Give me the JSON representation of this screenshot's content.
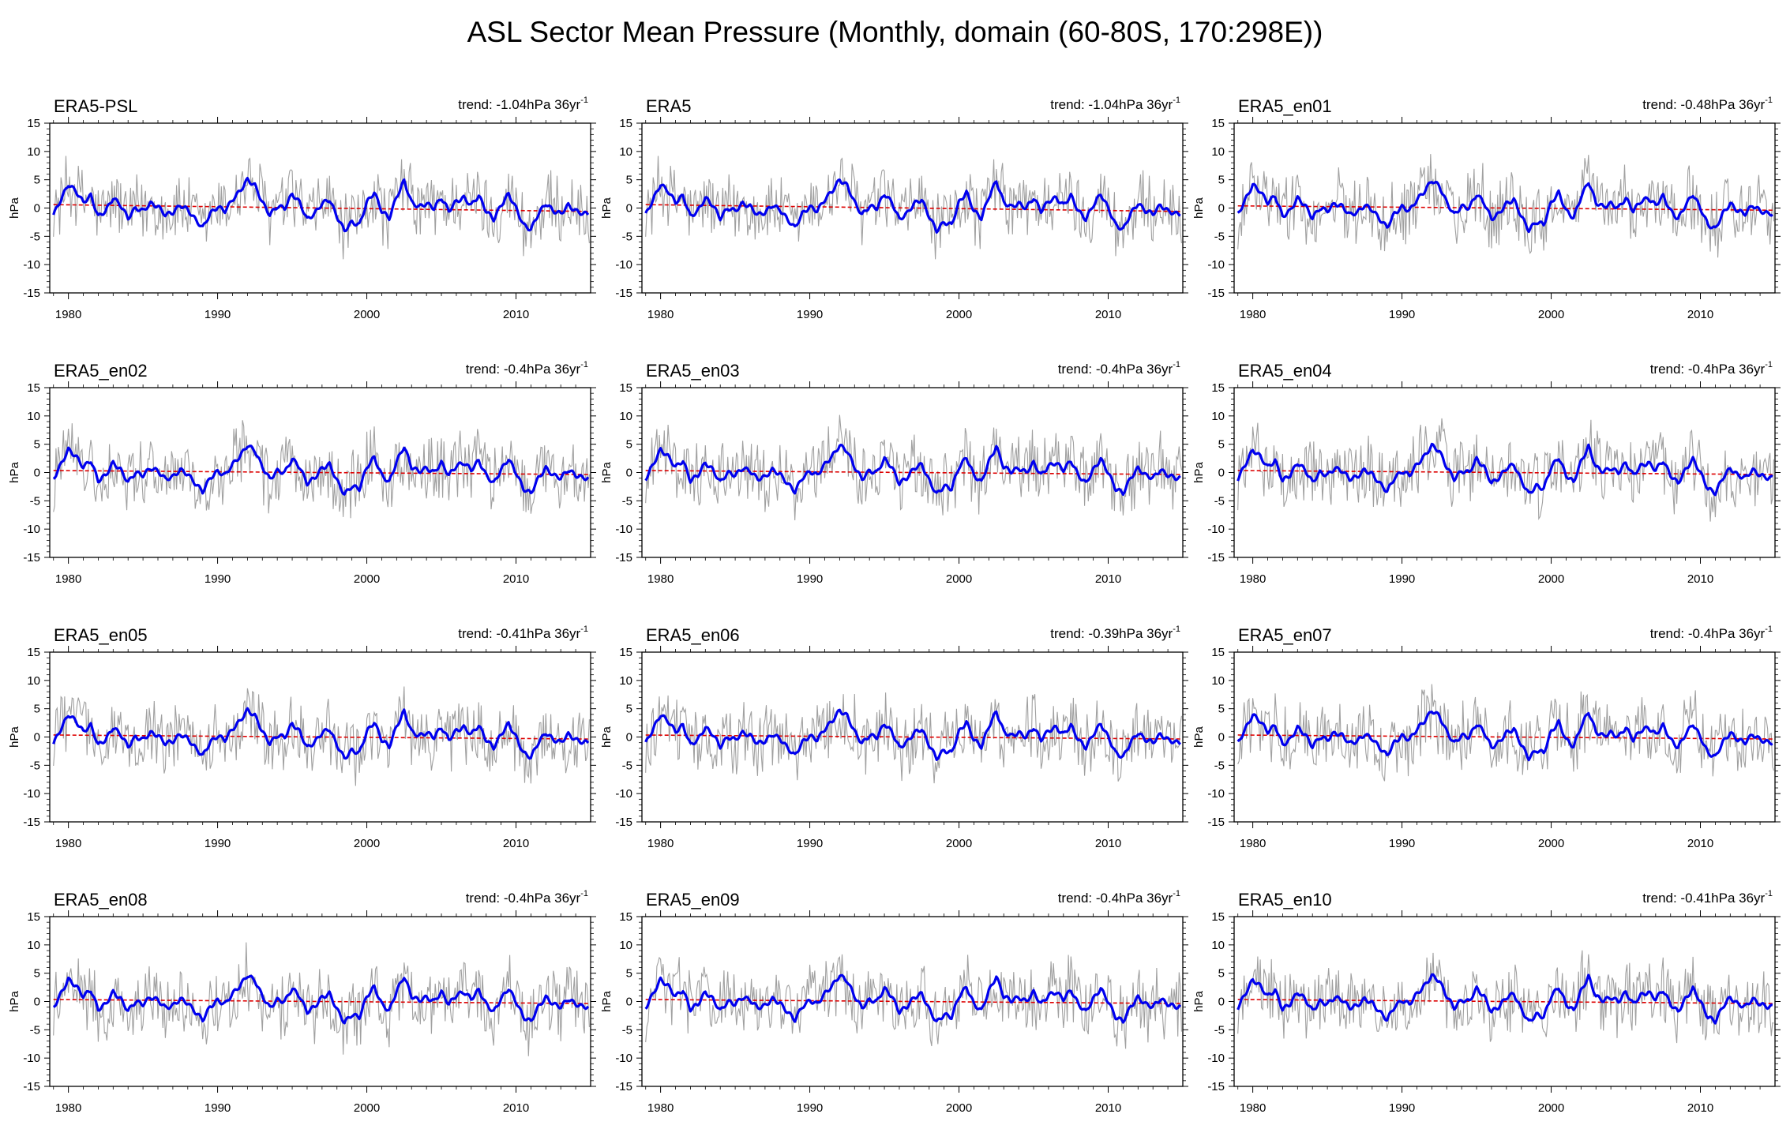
{
  "title": "ASL Sector Mean Pressure (Monthly, domain (60-80S, 170:298E))",
  "colors": {
    "monthly_line": "#a0a0a0",
    "smoothed_line": "#0000ee",
    "trend_line": "#dd0000",
    "axis": "#000000"
  },
  "axes": {
    "ylabel": "hPa",
    "ylim": [
      -15,
      15
    ],
    "yticks": [
      "15",
      "10",
      "5",
      "0",
      "-5",
      "-10",
      "-15"
    ],
    "xlim": [
      1978.75,
      2015.0
    ],
    "xticks": [
      "1980",
      "1990",
      "2000",
      "2010"
    ]
  },
  "chart_data": [
    {
      "type": "line",
      "name": "ERA5-PSL",
      "trend": "trend: -1.04hPa 36yr",
      "trend_value": -1.04,
      "offset": 0.0
    },
    {
      "type": "line",
      "name": "ERA5",
      "trend": "trend: -1.04hPa 36yr",
      "trend_value": -1.04,
      "offset": 0.0
    },
    {
      "type": "line",
      "name": "ERA5_en01",
      "trend": "trend: -0.48hPa 36yr",
      "trend_value": -0.48,
      "offset": 0.2
    },
    {
      "type": "line",
      "name": "ERA5_en02",
      "trend": "trend: -0.4hPa 36yr",
      "trend_value": -0.4,
      "offset": 0.3
    },
    {
      "type": "line",
      "name": "ERA5_en03",
      "trend": "trend: -0.4hPa 36yr",
      "trend_value": -0.4,
      "offset": 0.35
    },
    {
      "type": "line",
      "name": "ERA5_en04",
      "trend": "trend: -0.4hPa 36yr",
      "trend_value": -0.4,
      "offset": 0.4
    },
    {
      "type": "line",
      "name": "ERA5_en05",
      "trend": "trend: -0.41hPa 36yr",
      "trend_value": -0.41,
      "offset": 0.45
    },
    {
      "type": "line",
      "name": "ERA5_en06",
      "trend": "trend: -0.39hPa 36yr",
      "trend_value": -0.39,
      "offset": 0.5
    },
    {
      "type": "line",
      "name": "ERA5_en07",
      "trend": "trend: -0.4hPa 36yr",
      "trend_value": -0.4,
      "offset": 0.55
    },
    {
      "type": "line",
      "name": "ERA5_en08",
      "trend": "trend: -0.4hPa 36yr",
      "trend_value": -0.4,
      "offset": 0.6
    },
    {
      "type": "line",
      "name": "ERA5_en09",
      "trend": "trend: -0.4hPa 36yr",
      "trend_value": -0.4,
      "offset": 0.65
    },
    {
      "type": "line",
      "name": "ERA5_en10",
      "trend": "trend: -0.41hPa 36yr",
      "trend_value": -0.41,
      "offset": 0.7
    }
  ],
  "smoothed_series": {
    "x": [
      1979.0,
      1979.5,
      1980.0,
      1980.5,
      1981.0,
      1981.5,
      1982.0,
      1982.5,
      1983.0,
      1983.5,
      1984.0,
      1984.5,
      1985.0,
      1985.5,
      1986.0,
      1986.5,
      1987.0,
      1987.5,
      1988.0,
      1988.5,
      1989.0,
      1989.5,
      1990.0,
      1990.5,
      1991.0,
      1991.5,
      1992.0,
      1992.5,
      1993.0,
      1993.5,
      1994.0,
      1994.5,
      1995.0,
      1995.5,
      1996.0,
      1996.5,
      1997.0,
      1997.5,
      1998.0,
      1998.5,
      1999.0,
      1999.5,
      2000.0,
      2000.5,
      2001.0,
      2001.5,
      2002.0,
      2002.5,
      2003.0,
      2003.5,
      2004.0,
      2004.5,
      2005.0,
      2005.5,
      2006.0,
      2006.5,
      2007.0,
      2007.5,
      2008.0,
      2008.5,
      2009.0,
      2009.5,
      2010.0,
      2010.5,
      2011.0,
      2011.5,
      2012.0,
      2012.5,
      2013.0,
      2013.5,
      2014.0,
      2014.5
    ],
    "y": [
      -1.2,
      1.5,
      4.2,
      3.0,
      1.0,
      2.2,
      -1.5,
      -0.5,
      1.8,
      0.5,
      -1.8,
      0.0,
      -0.5,
      0.8,
      0.3,
      -1.2,
      -0.8,
      0.5,
      -0.3,
      -2.0,
      -3.5,
      -1.0,
      0.2,
      -0.5,
      1.5,
      3.0,
      5.0,
      4.0,
      1.0,
      -1.2,
      0.3,
      0.0,
      2.5,
      1.0,
      -2.0,
      -1.0,
      0.8,
      1.5,
      -1.5,
      -4.0,
      -2.5,
      -3.0,
      1.0,
      2.8,
      -0.5,
      -1.8,
      2.0,
      4.8,
      1.0,
      0.2,
      0.8,
      0.0,
      1.8,
      -0.5,
      1.2,
      1.8,
      0.5,
      2.2,
      -0.5,
      -2.0,
      0.5,
      2.5,
      0.0,
      -3.0,
      -3.8,
      -1.0,
      0.8,
      -0.5,
      -1.0,
      0.5,
      -0.5,
      -1.0
    ]
  },
  "monthly_range_note": ""
}
